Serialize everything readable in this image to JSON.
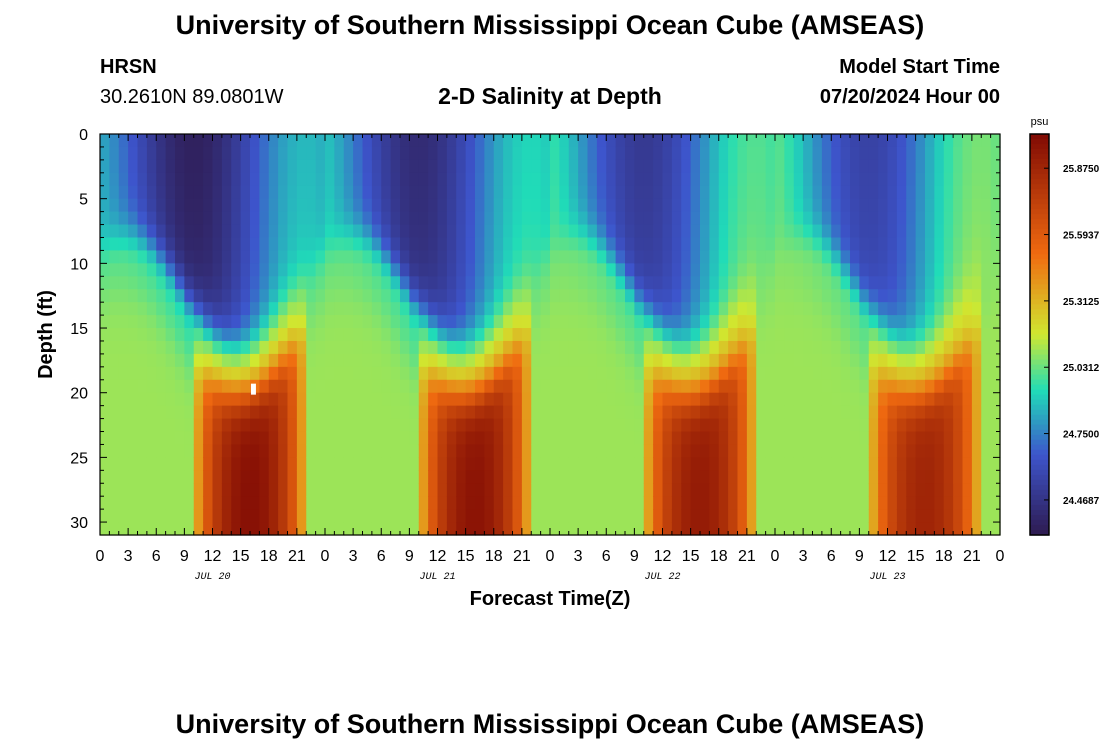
{
  "header": {
    "title": "University of Southern Mississippi Ocean Cube (AMSEAS)",
    "station_name": "HRSN",
    "station_coords": "30.2610N  89.0801W",
    "model_start_label": "Model Start Time",
    "model_start_value": "07/20/2024 Hour 00"
  },
  "footer": {
    "title": "University of Southern Mississippi Ocean Cube (AMSEAS)"
  },
  "chart_data": {
    "type": "heatmap",
    "title": "2-D Salinity at Depth",
    "xlabel": "Forecast Time(Z)",
    "ylabel": "Depth (ft)",
    "x_ticks": [
      "0",
      "3",
      "6",
      "9",
      "12",
      "15",
      "18",
      "21",
      "0",
      "3",
      "6",
      "9",
      "12",
      "15",
      "18",
      "21",
      "0",
      "3",
      "6",
      "9",
      "12",
      "15",
      "18",
      "21",
      "0",
      "3",
      "6",
      "9",
      "12",
      "15",
      "18",
      "21",
      "0"
    ],
    "x_range_hours": [
      0,
      96
    ],
    "day_labels": [
      "JUL 20",
      "JUL 21",
      "JUL 22",
      "JUL 23"
    ],
    "y_ticks": [
      0,
      5,
      10,
      15,
      20,
      25,
      30
    ],
    "y_range_ft": [
      0,
      31
    ],
    "colorbar": {
      "unit": "psu",
      "tick_labels": [
        "25.8750",
        "25.5937",
        "25.3125",
        "25.0312",
        "24.7500",
        "24.4687"
      ],
      "value_range": [
        24.32,
        26.02
      ]
    },
    "colors": {
      "dark_navy": "#2e1a4f",
      "blue": "#3d55cc",
      "cyan": "#20dcb8",
      "yellow": "#d0e830",
      "orange": "#f06a10",
      "dark_red": "#800a04"
    },
    "cycles": [
      {
        "day": "JUL 20",
        "surface_min_psu": 24.36,
        "bottom_max_psu": 25.99,
        "peak_hour": 16
      },
      {
        "day": "JUL 21",
        "surface_min_psu": 24.42,
        "bottom_max_psu": 25.97,
        "peak_hour": 40
      },
      {
        "day": "JUL 22",
        "surface_min_psu": 24.5,
        "bottom_max_psu": 25.93,
        "peak_hour": 65
      },
      {
        "day": "JUL 23",
        "surface_min_psu": 24.55,
        "bottom_max_psu": 25.88,
        "peak_hour": 89
      }
    ]
  }
}
